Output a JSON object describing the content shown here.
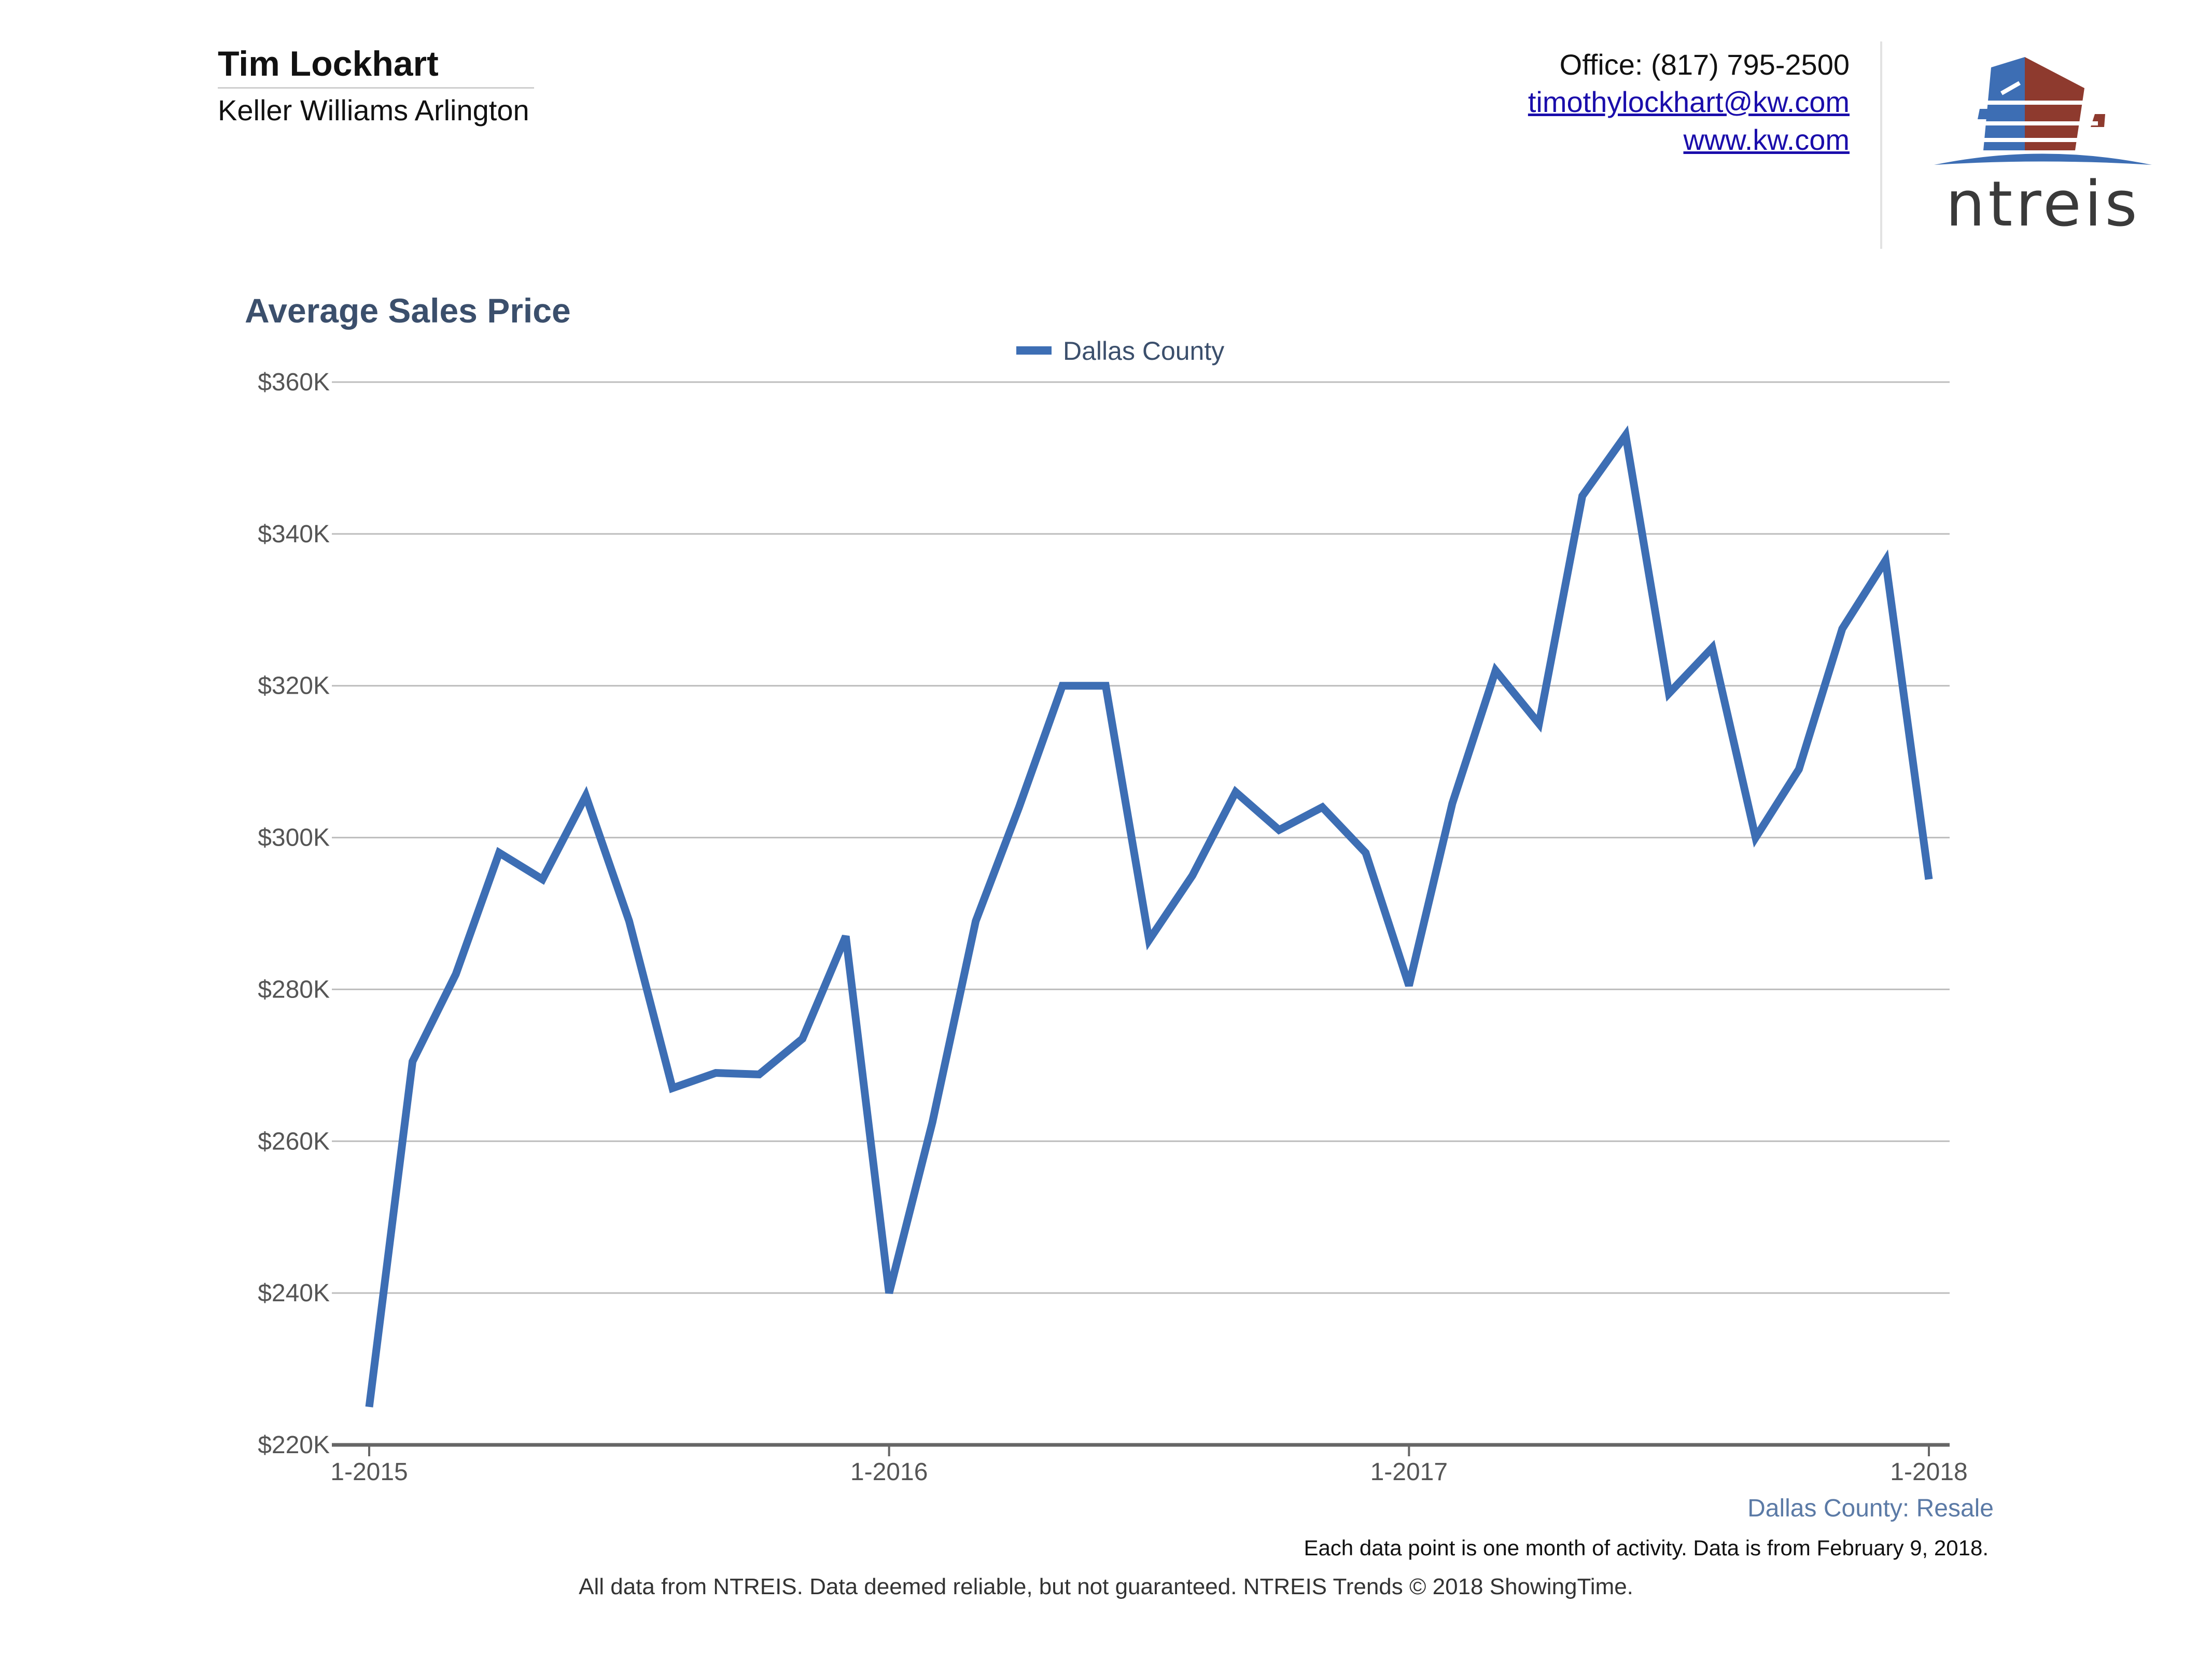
{
  "agent": {
    "name": "Tim Lockhart",
    "company": "Keller Williams Arlington",
    "office": "Office: (817) 795-2500",
    "email": "timothylockhart@kw.com",
    "website": "www.kw.com"
  },
  "logo": {
    "name": "ntreis",
    "text": "ntreis"
  },
  "colors": {
    "series": "#3d6eb4",
    "title": "#3b4f6c",
    "subtitle": "#5b7aa6",
    "grid": "#bdbdbd",
    "logo_blue": "#3d6eb4",
    "logo_red": "#8e3a2e",
    "logo_text": "#3a3a3a"
  },
  "chart_data": {
    "type": "line",
    "title": "Average Sales Price",
    "legend": {
      "placement": "top-center",
      "entries": [
        "Dallas County"
      ]
    },
    "xlabel": "",
    "ylabel": "",
    "x": [
      "1-2015",
      "2-2015",
      "3-2015",
      "4-2015",
      "5-2015",
      "6-2015",
      "7-2015",
      "8-2015",
      "9-2015",
      "10-2015",
      "11-2015",
      "12-2015",
      "1-2016",
      "2-2016",
      "3-2016",
      "4-2016",
      "5-2016",
      "6-2016",
      "7-2016",
      "8-2016",
      "9-2016",
      "10-2016",
      "11-2016",
      "12-2016",
      "1-2017",
      "2-2017",
      "3-2017",
      "4-2017",
      "5-2017",
      "6-2017",
      "7-2017",
      "8-2017",
      "9-2017",
      "10-2017",
      "11-2017",
      "12-2017",
      "1-2018"
    ],
    "xticks": [
      "1-2015",
      "1-2016",
      "1-2017",
      "1-2018"
    ],
    "series": [
      {
        "name": "Dallas County",
        "values": [
          225000,
          270500,
          282000,
          298000,
          294500,
          305500,
          289000,
          267000,
          269000,
          268800,
          273500,
          287000,
          240000,
          262500,
          289000,
          304000,
          320000,
          320000,
          286500,
          295000,
          306000,
          301000,
          304000,
          298000,
          280500,
          304500,
          322000,
          315000,
          345000,
          353000,
          319000,
          325000,
          300000,
          309000,
          327500,
          336500,
          294500
        ]
      }
    ],
    "ylim": [
      220000,
      360000
    ],
    "yticks": [
      220000,
      240000,
      260000,
      280000,
      300000,
      320000,
      340000,
      360000
    ],
    "ytick_labels": [
      "$220K",
      "$240K",
      "$260K",
      "$280K",
      "$300K",
      "$320K",
      "$340K",
      "$360K"
    ],
    "grid": true,
    "subtitle": "Dallas County: Resale",
    "note": "Each data point is one month of activity. Data is from February 9, 2018."
  },
  "footer": "All data from NTREIS. Data deemed reliable, but not guaranteed. NTREIS Trends © 2018 ShowingTime."
}
